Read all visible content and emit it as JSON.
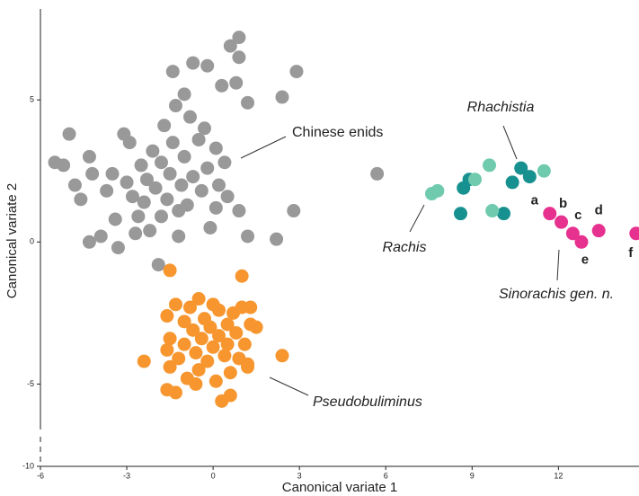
{
  "chart_data": {
    "type": "scatter",
    "xlabel": "Canonical variate 1",
    "ylabel": "Canonical variate 2",
    "xlim": [
      -6,
      14.8
    ],
    "ylim": [
      -6.6,
      8.2
    ],
    "y_break": true,
    "xticks": [
      -6,
      -3,
      0,
      3,
      6,
      9,
      12
    ],
    "yticks": [
      5,
      0,
      -5,
      -10
    ],
    "series": [
      {
        "name": "Chinese enids",
        "italic": false,
        "color": "#999999",
        "x": [
          -5.5,
          -5.0,
          -5.2,
          -4.8,
          -4.6,
          -4.3,
          -4.2,
          -4.3,
          -3.9,
          -3.7,
          -3.5,
          -3.4,
          -3.3,
          -3.1,
          -3.0,
          -2.9,
          -2.8,
          -2.7,
          -2.6,
          -2.5,
          -2.4,
          -2.3,
          -2.2,
          -2.1,
          -2.0,
          -1.9,
          -1.8,
          -1.8,
          -1.7,
          -1.6,
          -1.5,
          -1.4,
          -1.4,
          -1.3,
          -1.2,
          -1.2,
          -1.1,
          -1.0,
          -1.0,
          -0.9,
          -0.8,
          -0.7,
          -0.7,
          -0.5,
          -0.4,
          -0.3,
          -0.2,
          -0.2,
          -0.1,
          0.1,
          0.1,
          0.2,
          0.3,
          0.4,
          0.5,
          0.6,
          0.8,
          0.9,
          0.9,
          0.9,
          1.2,
          1.2,
          2.2,
          2.4,
          2.8,
          2.9,
          5.7
        ],
        "values": [
          2.8,
          3.8,
          2.7,
          2.0,
          1.5,
          3.0,
          2.4,
          0.0,
          0.2,
          1.8,
          2.4,
          0.8,
          -0.2,
          3.8,
          2.1,
          3.5,
          1.6,
          0.3,
          0.9,
          2.7,
          1.4,
          2.2,
          0.4,
          3.2,
          1.9,
          -0.8,
          2.8,
          0.9,
          4.1,
          1.5,
          2.4,
          6.0,
          3.5,
          4.8,
          0.2,
          1.1,
          2.0,
          5.2,
          3.0,
          1.3,
          4.4,
          2.3,
          6.3,
          3.6,
          1.8,
          4.0,
          6.2,
          2.6,
          0.5,
          1.2,
          3.3,
          2.0,
          5.5,
          2.8,
          1.6,
          6.9,
          5.6,
          7.2,
          6.5,
          1.1,
          4.9,
          0.2,
          0.1,
          5.1,
          1.1,
          6.0,
          2.4
        ]
      },
      {
        "name": "Pseudobuliminus",
        "italic": true,
        "color": "#f7962f",
        "x": [
          -1.5,
          1.0,
          -2.4,
          -1.6,
          -1.5,
          -1.6,
          -1.5,
          -1.6,
          -1.3,
          -1.2,
          -1.0,
          -1.0,
          -0.9,
          -0.8,
          -0.7,
          -0.6,
          -0.5,
          -0.5,
          -0.4,
          -0.3,
          -0.2,
          -0.1,
          0.0,
          0.1,
          0.2,
          0.2,
          0.3,
          0.4,
          0.5,
          0.5,
          0.6,
          0.7,
          0.8,
          0.9,
          1.0,
          1.1,
          1.2,
          1.3,
          1.3,
          1.5,
          2.4,
          -0.6,
          0.0,
          -1.3,
          0.6,
          1.2
        ],
        "values": [
          -1.0,
          -1.2,
          -4.2,
          -2.6,
          -3.4,
          -3.8,
          -4.4,
          -5.2,
          -5.3,
          -4.1,
          -2.8,
          -3.6,
          -4.8,
          -2.3,
          -3.1,
          -3.9,
          -4.5,
          -2.0,
          -3.4,
          -2.7,
          -4.2,
          -3.0,
          -3.7,
          -4.9,
          -2.4,
          -3.3,
          -5.6,
          -4.0,
          -2.9,
          -3.6,
          -4.6,
          -2.5,
          -3.2,
          -4.1,
          -2.3,
          -3.6,
          -4.3,
          -2.9,
          -2.3,
          -3.0,
          -4.0,
          -5.0,
          -2.2,
          -2.2,
          -5.4,
          -4.4
        ]
      },
      {
        "name": "Rhachistia",
        "italic": true,
        "color": "#17918f",
        "x": [
          8.6,
          8.7,
          8.9,
          10.1,
          10.4,
          10.7,
          11.0
        ],
        "values": [
          1.0,
          1.9,
          2.2,
          1.0,
          2.1,
          2.6,
          2.3
        ]
      },
      {
        "name": "Rachis",
        "italic": true,
        "color": "#6fcaae",
        "x": [
          7.6,
          7.8,
          9.1,
          9.6,
          9.7,
          11.5
        ],
        "values": [
          1.7,
          1.8,
          2.2,
          2.7,
          1.1,
          2.5
        ]
      },
      {
        "name": "Sinorachis gen. n.",
        "italic": true,
        "color": "#e6318f",
        "x": [
          11.7,
          12.1,
          12.5,
          13.4,
          12.8,
          14.7
        ],
        "values": [
          1.0,
          0.7,
          0.3,
          0.4,
          0.0,
          0.3
        ],
        "point_labels": [
          "a",
          "b",
          "c",
          "d",
          "e",
          "f"
        ]
      }
    ]
  }
}
